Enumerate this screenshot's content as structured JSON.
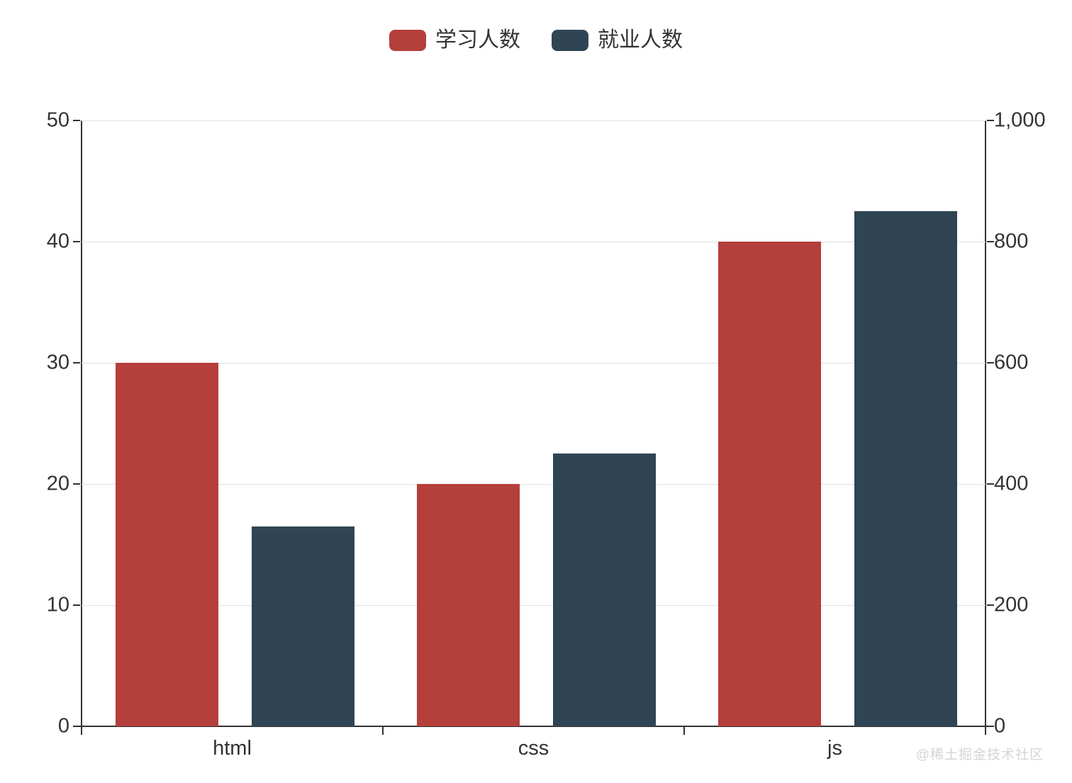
{
  "legend": {
    "position": "top"
  },
  "chart_data": {
    "type": "bar",
    "categories": [
      "html",
      "css",
      "js"
    ],
    "series": [
      {
        "name": "学习人数",
        "key": "study",
        "color": "#b43f3b",
        "axis": "left",
        "values": [
          30,
          20,
          40
        ]
      },
      {
        "name": "就业人数",
        "key": "employ",
        "color": "#2f4554",
        "axis": "right",
        "values": [
          330,
          450,
          850
        ]
      }
    ],
    "title": "",
    "xlabel": "",
    "ylabel": "",
    "left_axis": {
      "min": 0,
      "max": 50,
      "tick_labels": [
        "0",
        "10",
        "20",
        "30",
        "40",
        "50"
      ]
    },
    "right_axis": {
      "min": 0,
      "max": 1000,
      "tick_labels": [
        "0",
        "200",
        "400",
        "600",
        "800",
        "1,000"
      ]
    },
    "grid": true,
    "legend_position": "top",
    "colors": {
      "axis_line": "#333333",
      "gridline": "#e0e0e0",
      "label_text": "#333333"
    }
  },
  "watermark": "@稀土掘金技术社区"
}
